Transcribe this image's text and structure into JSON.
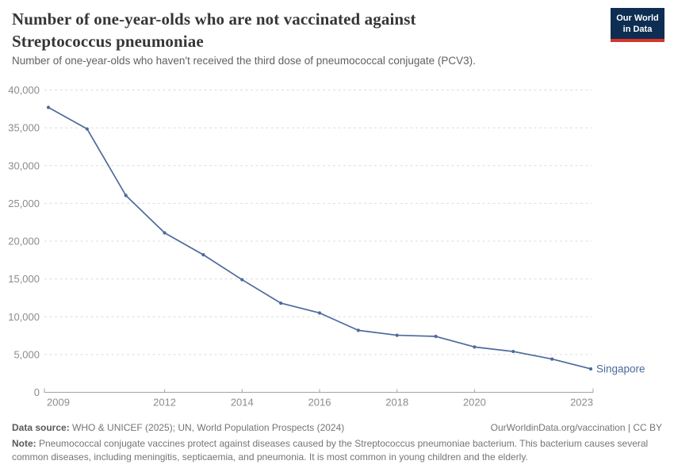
{
  "header": {
    "title_line1": "Number of one-year-olds who are not vaccinated against",
    "title_line2": "Streptococcus pneumoniae",
    "subtitle": "Number of one-year-olds who haven't received the third dose of pneumococcal conjugate (PCV3).",
    "logo_line1": "Our World",
    "logo_line2": "in Data"
  },
  "chart_data": {
    "type": "line",
    "title": "Number of one-year-olds who are not vaccinated against Streptococcus pneumoniae",
    "subtitle": "Number of one-year-olds who haven't received the third dose of pneumococcal conjugate (PCV3).",
    "x": [
      2009,
      2010,
      2011,
      2012,
      2013,
      2014,
      2015,
      2016,
      2017,
      2018,
      2019,
      2020,
      2021,
      2022,
      2023
    ],
    "series": [
      {
        "name": "Singapore",
        "color": "#4c6a9c",
        "values": [
          37700,
          34850,
          26050,
          21100,
          18200,
          14900,
          11800,
          10500,
          8200,
          7550,
          7400,
          6000,
          5400,
          4400,
          3100
        ]
      }
    ],
    "end_label": "Singapore",
    "xlabel": "",
    "ylabel": "",
    "xlim": [
      2009,
      2023
    ],
    "ylim": [
      0,
      40000
    ],
    "x_ticks": [
      2009,
      2012,
      2014,
      2016,
      2018,
      2020,
      2023
    ],
    "y_ticks": [
      {
        "value": 0,
        "label": "0"
      },
      {
        "value": 5000,
        "label": "5,000"
      },
      {
        "value": 10000,
        "label": "10,000"
      },
      {
        "value": 15000,
        "label": "15,000"
      },
      {
        "value": 20000,
        "label": "20,000"
      },
      {
        "value": 25000,
        "label": "25,000"
      },
      {
        "value": 30000,
        "label": "30,000"
      },
      {
        "value": 35000,
        "label": "35,000"
      },
      {
        "value": 40000,
        "label": "40,000"
      }
    ],
    "grid": "horizontal-dashed",
    "legend_position": "end-of-line"
  },
  "footer": {
    "source_label": "Data source:",
    "source_text": " WHO & UNICEF (2025); UN, World Population Prospects (2024)",
    "rights": "OurWorldinData.org/vaccination | CC BY",
    "note_label": "Note:",
    "note_text": " Pneumococcal conjugate vaccines protect against diseases caused by the Streptococcus pneumoniae bacterium. This bacterium causes several common diseases, including meningitis, septicaemia, and pneumonia. It is most common in young children and the elderly."
  },
  "colors": {
    "accent": "#4c6a9c",
    "grid": "#dcdcdc",
    "axis": "#a3a3a3",
    "tick_text": "#8c8c8c",
    "logo_bg": "#0d2d52",
    "logo_underline": "#d8352a"
  }
}
